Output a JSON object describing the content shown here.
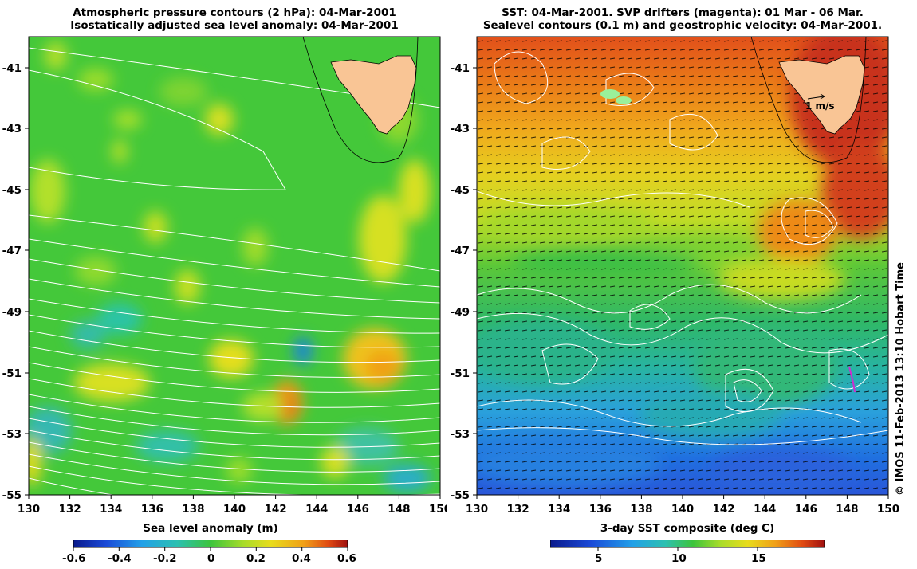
{
  "left_panel": {
    "title_line1": "Atmospheric pressure contours (2 hPa): 04-Mar-2001",
    "title_line2": "Isostatically adjusted sea level anomaly: 04-Mar-2001",
    "colorbar_title": "Sea level anomaly (m)",
    "colorbar_ticks": [
      "-0.6",
      "-0.4",
      "-0.2",
      "0",
      "0.2",
      "0.4",
      "0.6"
    ]
  },
  "right_panel": {
    "title_line1": "SST: 04-Mar-2001. SVP drifters (magenta): 01 Mar - 06 Mar.",
    "title_line2": "Sealevel contours (0.1 m) and geostrophic velocity: 04-Mar-2001.",
    "colorbar_title": "3-day SST composite (deg C)",
    "colorbar_ticks": [
      "5",
      "10",
      "15"
    ],
    "velocity_scale_label": "1 m/s"
  },
  "axes": {
    "lon_ticks": [
      "130",
      "132",
      "134",
      "136",
      "138",
      "140",
      "142",
      "144",
      "146",
      "148",
      "150"
    ],
    "lat_ticks": [
      "-41",
      "-43",
      "-45",
      "-47",
      "-49",
      "-51",
      "-53",
      "-55"
    ]
  },
  "credit": "© IMOS 11-Feb-2013 13:10 Hobart Time",
  "colors": {
    "land": "#f9c595",
    "anomaly_mid": "#3cc43c",
    "sst_warm": "#e06010",
    "sst_cold": "#1f8fe0"
  }
}
